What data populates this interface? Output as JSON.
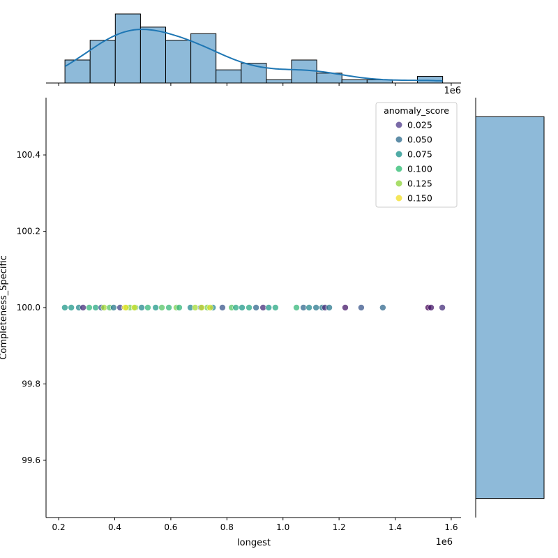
{
  "chart_data": {
    "type": "scatter",
    "xlabel": "longest",
    "ylabel": "Completeness_Specific",
    "x_offset_text": "1e6",
    "xlim": [
      0.155,
      1.635
    ],
    "ylim": [
      99.45,
      100.55
    ],
    "xticks": [
      "0.2",
      "0.4",
      "0.6",
      "0.8",
      "1.0",
      "1.2",
      "1.4",
      "1.6"
    ],
    "yticks": [
      "99.6",
      "99.8",
      "100.0",
      "100.2",
      "100.4"
    ],
    "grid": false,
    "legend": {
      "title": "anomaly_score",
      "placement": "top-right",
      "entries": [
        "0.025",
        "0.050",
        "0.075",
        "0.100",
        "0.125",
        "0.150"
      ],
      "colors": [
        "#7a6aa7",
        "#5f8ea8",
        "#50aba6",
        "#5fcc93",
        "#a9de6a",
        "#f5e65a"
      ]
    },
    "colormap": "viridis",
    "points": {
      "x": [
        0.222,
        0.245,
        0.272,
        0.287,
        0.309,
        0.332,
        0.352,
        0.362,
        0.382,
        0.396,
        0.419,
        0.436,
        0.454,
        0.474,
        0.496,
        0.518,
        0.546,
        0.568,
        0.593,
        0.62,
        0.63,
        0.67,
        0.687,
        0.707,
        0.73,
        0.75,
        0.784,
        0.817,
        0.832,
        0.854,
        0.879,
        0.904,
        0.929,
        0.949,
        0.973,
        1.048,
        1.073,
        1.093,
        1.118,
        1.14,
        1.15,
        1.165,
        1.222,
        1.279,
        1.356,
        1.518,
        1.528,
        1.568,
        0.44,
        0.47,
        0.74,
        0.71
      ],
      "y": [
        100,
        100,
        100,
        100,
        100,
        100,
        100,
        100,
        100,
        100,
        100,
        100,
        100,
        100,
        100,
        100,
        100,
        100,
        100,
        100,
        100,
        100,
        100,
        100,
        100,
        100,
        100,
        100,
        100,
        100,
        100,
        100,
        100,
        100,
        100,
        100,
        100,
        100,
        100,
        100,
        100,
        100,
        100,
        100,
        100,
        100,
        100,
        100,
        100,
        100,
        100,
        100
      ],
      "anomaly_score": [
        0.09,
        0.09,
        0.08,
        0.03,
        0.11,
        0.1,
        0.05,
        0.14,
        0.12,
        0.07,
        0.04,
        0.16,
        0.13,
        0.12,
        0.08,
        0.11,
        0.09,
        0.12,
        0.11,
        0.13,
        0.11,
        0.08,
        0.14,
        0.06,
        0.13,
        0.08,
        0.05,
        0.12,
        0.1,
        0.09,
        0.1,
        0.06,
        0.03,
        0.09,
        0.1,
        0.11,
        0.06,
        0.08,
        0.07,
        0.07,
        0.03,
        0.07,
        0.02,
        0.05,
        0.06,
        0.01,
        0.02,
        0.03,
        0.15,
        0.15,
        0.15,
        0.15
      ]
    },
    "top_histogram": {
      "bin_start": 0.2224,
      "bin_width": 0.0898,
      "counts": [
        7,
        13,
        21,
        17,
        13,
        15,
        4,
        6,
        1,
        7,
        3,
        1,
        1,
        0,
        2
      ],
      "kde": true,
      "color": "#8ebad9",
      "kde_color": "#1f77b4"
    },
    "right_histogram": {
      "bin_range": [
        99.5,
        100.5
      ],
      "counts": [
        111
      ],
      "color": "#8ebad9"
    }
  }
}
